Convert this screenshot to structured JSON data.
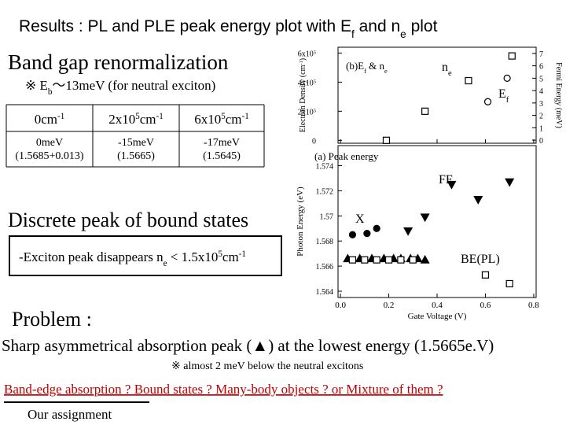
{
  "title": [
    {
      "text": "Results : PL and PLE peak energy plot with E"
    },
    {
      "text": "f",
      "style": "sub"
    },
    {
      "text": " and n"
    },
    {
      "text": "e",
      "style": "sub"
    },
    {
      "text": " plot"
    }
  ],
  "heading": "Band gap renormalization",
  "note": [
    {
      "text": "※ E"
    },
    {
      "text": "b",
      "style": "sub"
    },
    {
      "text": "～13meV  (for neutral exciton)"
    }
  ],
  "table": {
    "header": [
      [
        {
          "text": "0cm"
        },
        {
          "text": "-1",
          "style": "sup"
        }
      ],
      [
        {
          "text": "2x10"
        },
        {
          "text": "5",
          "style": "sup"
        },
        {
          "text": "cm"
        },
        {
          "text": "-1",
          "style": "sup"
        }
      ],
      [
        {
          "text": "6x10"
        },
        {
          "text": "5",
          "style": "sup"
        },
        {
          "text": "cm"
        },
        {
          "text": "-1",
          "style": "sup"
        }
      ]
    ],
    "rows": [
      [
        [
          "0meV",
          "(1.5685+0.013)"
        ],
        [
          "-15meV",
          "(1.5665)"
        ],
        [
          "-17meV",
          "(1.5645)"
        ]
      ]
    ]
  },
  "discrete": "Discrete peak of bound states",
  "exciton": [
    {
      "text": "-Exciton peak disappears n"
    },
    {
      "text": "e",
      "style": "sub"
    },
    {
      "text": " < 1.5x10"
    },
    {
      "text": "5",
      "style": "sup"
    },
    {
      "text": "cm"
    },
    {
      "text": "-1",
      "style": "sup"
    }
  ],
  "problem": "Problem :",
  "sharp": "Sharp asymmetrical absorption peak (▲) at the lowest energy (1.5665e.V)",
  "remark": "※ almost 2 meV below the neutral excitons",
  "question": "Band-edge absorption ? Bound states ? Many-body objects ? or Mixture of them ?",
  "assignment": "Our assignment",
  "figure": {
    "x_label": "Gate Voltage (V)",
    "xlim": [
      -0.01,
      0.81
    ],
    "xticks": [
      {
        "value": 0,
        "label": "0.0"
      },
      0.2,
      0.4,
      0.6,
      0.8
    ],
    "top": {
      "label": [
        {
          "text": "(b)E"
        },
        {
          "text": "f",
          "style": "sub"
        },
        {
          "text": " & n"
        },
        {
          "text": "e",
          "style": "sub"
        }
      ],
      "y_label": [
        {
          "text": "Electron Density (cm"
        },
        {
          "text": "-1",
          "style": "sup"
        },
        {
          "text": ")"
        }
      ],
      "ylim": [
        -0.2,
        6.4
      ],
      "yticks": [
        {
          "value": 0,
          "label": [
            {
              "text": "0"
            }
          ]
        },
        {
          "value": 2,
          "label": [
            {
              "text": "2x10"
            },
            {
              "text": "5",
              "style": "sup"
            }
          ]
        },
        {
          "value": 4,
          "label": [
            {
              "text": "4x10"
            },
            {
              "text": "5",
              "style": "sup"
            }
          ]
        },
        {
          "value": 6,
          "label": [
            {
              "text": "6x10"
            },
            {
              "text": "5",
              "style": "sup"
            }
          ]
        }
      ],
      "y2_label": "Fermi Energy (meV)",
      "y2lim": [
        -0.25,
        7.5
      ],
      "y2ticks": [
        0,
        1,
        2,
        3,
        4,
        5,
        6,
        7
      ],
      "series": [
        {
          "name": [
            {
              "text": "n"
            },
            {
              "text": "e",
              "style": "sub"
            }
          ],
          "marker": "square",
          "filled": false,
          "x": [
            0.19,
            0.35,
            0.53,
            0.71
          ],
          "values": [
            0,
            2.0,
            4.1,
            5.8
          ]
        },
        {
          "name": [
            {
              "text": "E"
            },
            {
              "text": "f",
              "style": "sub"
            }
          ],
          "marker": "circle",
          "filled": false,
          "axis": "y2",
          "x": [
            0.61,
            0.69
          ],
          "values": [
            3.1,
            5.0
          ]
        }
      ]
    },
    "bottom": {
      "label": "(a) Peak energy",
      "y_label": "Photon Energy (eV)",
      "ylim": [
        1.5635,
        1.5756
      ],
      "yticks": [
        1.564,
        1.566,
        1.568,
        1.57,
        1.572,
        1.574
      ],
      "series": [
        {
          "name": "FE",
          "marker": "tri-down",
          "filled": true,
          "x": [
            0.28,
            0.35,
            0.46,
            0.57,
            0.7
          ],
          "values": [
            1.5688,
            1.5699,
            1.5725,
            1.5713,
            1.5727
          ]
        },
        {
          "name": "X",
          "marker": "circle",
          "filled": true,
          "x": [
            0.05,
            0.11,
            0.15
          ],
          "values": [
            1.5685,
            1.5686,
            1.569
          ]
        },
        {
          "marker": "tri-up",
          "filled": true,
          "x": [
            0.03,
            0.08,
            0.13,
            0.18,
            0.22,
            0.25,
            0.29,
            0.32,
            0.35
          ],
          "values": [
            1.5666,
            1.5666,
            1.5666,
            1.5666,
            1.5666,
            1.5666,
            1.5666,
            1.5666,
            1.5665
          ]
        },
        {
          "name": "BE(PL)",
          "marker": "square",
          "filled": false,
          "x": [
            0.05,
            0.1,
            0.15,
            0.2,
            0.25,
            0.3,
            0.6,
            0.7
          ],
          "values": [
            1.5665,
            1.5665,
            1.5665,
            1.5665,
            1.5665,
            1.5665,
            1.5653,
            1.5646
          ]
        }
      ]
    }
  }
}
